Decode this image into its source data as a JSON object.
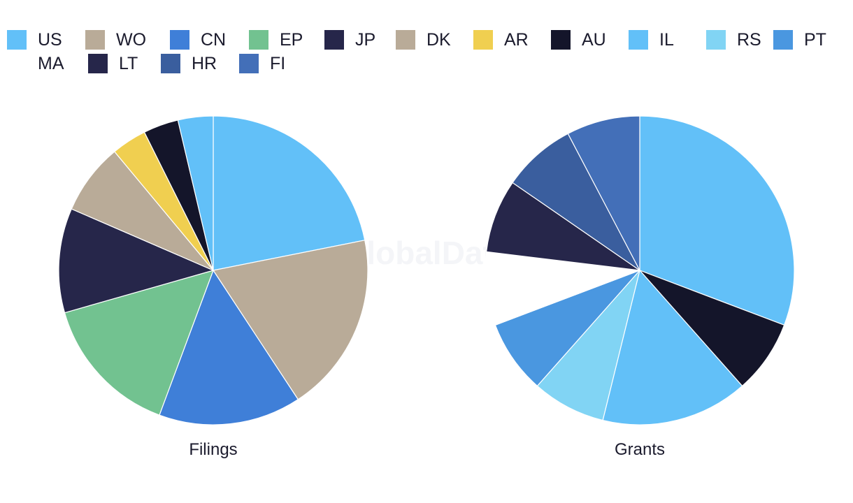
{
  "watermark": "GlobalData",
  "legend": [
    {
      "label": "US",
      "color": "#62c0f8"
    },
    {
      "label": "WO",
      "color": "#b9ab98"
    },
    {
      "label": "CN",
      "color": "#3f7fd8"
    },
    {
      "label": "EP",
      "color": "#72c290"
    },
    {
      "label": "JP",
      "color": "#26264a"
    },
    {
      "label": "DK",
      "color": "#b9ab98"
    },
    {
      "label": "AR",
      "color": "#f0cf50"
    },
    {
      "label": "AU",
      "color": "#14152a"
    },
    {
      "label": "IL",
      "color": "#62c0f8"
    },
    {
      "label": "RS",
      "color": "#81d4f4"
    },
    {
      "label": "PT",
      "color": "#4a97e0"
    },
    {
      "label": "MA",
      "color": "#ffffff"
    },
    {
      "label": "LT",
      "color": "#26264a"
    },
    {
      "label": "HR",
      "color": "#3a5e9e"
    },
    {
      "label": "FI",
      "color": "#436fb8"
    }
  ],
  "chart_data": [
    {
      "type": "pie",
      "title": "Filings",
      "slices": [
        {
          "label": "US",
          "value": 22,
          "color": "#62c0f8"
        },
        {
          "label": "WO",
          "value": 19,
          "color": "#b9ab98"
        },
        {
          "label": "CN",
          "value": 15,
          "color": "#3f7fd8"
        },
        {
          "label": "EP",
          "value": 15,
          "color": "#72c290"
        },
        {
          "label": "JP",
          "value": 11,
          "color": "#26264a"
        },
        {
          "label": "DK",
          "value": 7.5,
          "color": "#b9ab98"
        },
        {
          "label": "AR",
          "value": 3.7,
          "color": "#f0cf50"
        },
        {
          "label": "AU",
          "value": 3.7,
          "color": "#14152a"
        },
        {
          "label": "IL",
          "value": 3.7,
          "color": "#62c0f8"
        }
      ]
    },
    {
      "type": "pie",
      "title": "Grants",
      "slices": [
        {
          "label": "US",
          "value": 30.8,
          "color": "#62c0f8"
        },
        {
          "label": "AU",
          "value": 7.7,
          "color": "#14152a"
        },
        {
          "label": "IL",
          "value": 15.4,
          "color": "#62c0f8"
        },
        {
          "label": "RS",
          "value": 7.7,
          "color": "#81d4f4"
        },
        {
          "label": "PT",
          "value": 7.7,
          "color": "#4a97e0"
        },
        {
          "label": "MA",
          "value": 7.7,
          "color": "#ffffff"
        },
        {
          "label": "LT",
          "value": 7.7,
          "color": "#26264a"
        },
        {
          "label": "HR",
          "value": 7.7,
          "color": "#3a5e9e"
        },
        {
          "label": "FI",
          "value": 7.7,
          "color": "#436fb8"
        }
      ]
    }
  ]
}
